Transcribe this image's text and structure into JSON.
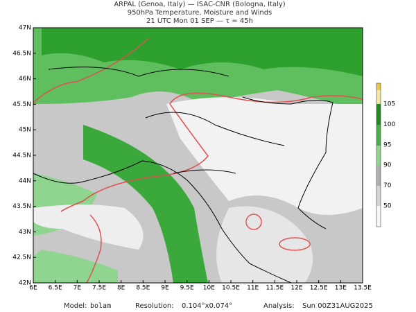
{
  "header": {
    "line1": "ARPAL (Genoa, Italy)  —  ISAC-CNR (Bologna, Italy)",
    "line2": "950hPa Temperature, Moisture and Winds",
    "line3": "21 UTC Mon 01 SEP  —  τ = 45h"
  },
  "map": {
    "lat_labels": [
      "47N",
      "46.5N",
      "46N",
      "45.5N",
      "45N",
      "44.5N",
      "44N",
      "43.5N",
      "43N",
      "42.5N",
      "42N"
    ],
    "lon_labels": [
      "6E",
      "6.5E",
      "7E",
      "7.5E",
      "8E",
      "8.5E",
      "9E",
      "9.5E",
      "10E",
      "10.5E",
      "11E",
      "11.5E",
      "12E",
      "12.5E",
      "13E",
      "13.5E"
    ]
  },
  "colorbar": {
    "labels": [
      "105",
      "100",
      "95",
      "90",
      "70",
      "50"
    ]
  },
  "footer": {
    "model_label": "Model:",
    "model": "bolam",
    "resolution_label": "Resolution:",
    "resolution": "0.104°x0.074°",
    "analysis_label": "Analysis:",
    "analysis": "Sun 00Z31AUG2025"
  }
}
